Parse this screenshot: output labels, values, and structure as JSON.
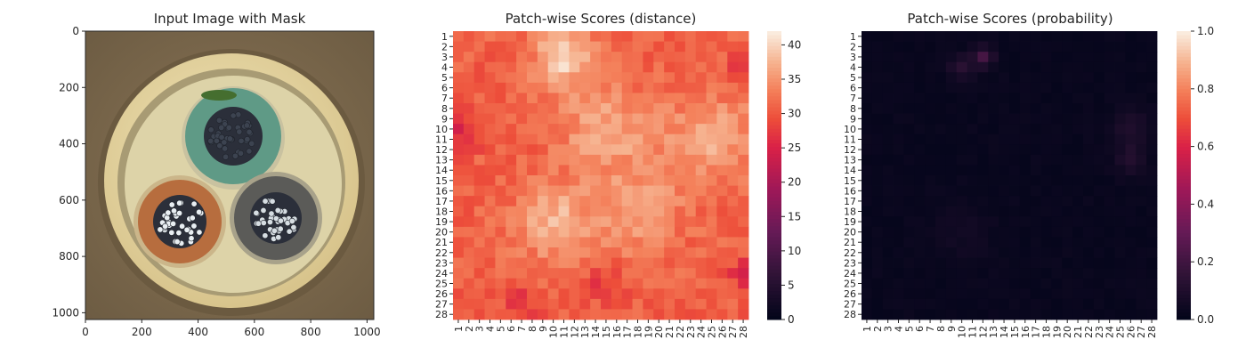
{
  "chart_data": [
    {
      "type": "image",
      "title": "Input Image with Mask",
      "xlim": [
        0,
        1024
      ],
      "ylim": [
        0,
        1024
      ],
      "x_ticks": [
        "0",
        "200",
        "400",
        "600",
        "800",
        "1000"
      ],
      "y_ticks": [
        "0",
        "200",
        "400",
        "600",
        "800",
        "1000"
      ],
      "x_tick_values": [
        0,
        200,
        400,
        600,
        800,
        1000
      ],
      "y_tick_values": [
        0,
        200,
        400,
        600,
        800,
        1000
      ],
      "image_colors": {
        "background": "#8a7556",
        "outer_ring": "#d8c48c",
        "inner_area": "#ddd3a8",
        "cable_top": "#5f9a86",
        "cable_left": "#b76d3e",
        "cable_right": "#5b5b58",
        "core": "#2b2f3a",
        "strand": "#e8eef2"
      }
    },
    {
      "type": "heatmap",
      "title": "Patch-wise Scores (distance)",
      "colormap": "rocket",
      "grid_size": 28,
      "x_ticks": [
        "1",
        "2",
        "3",
        "4",
        "5",
        "6",
        "7",
        "8",
        "9",
        "10",
        "11",
        "12",
        "13",
        "14",
        "15",
        "16",
        "17",
        "18",
        "19",
        "20",
        "21",
        "22",
        "23",
        "24",
        "25",
        "26",
        "27",
        "28"
      ],
      "y_ticks": [
        "1",
        "2",
        "3",
        "4",
        "5",
        "6",
        "7",
        "8",
        "9",
        "10",
        "11",
        "12",
        "13",
        "14",
        "15",
        "16",
        "17",
        "18",
        "19",
        "20",
        "21",
        "22",
        "23",
        "24",
        "25",
        "26",
        "27",
        "28"
      ],
      "colorbar": {
        "vmin": 0,
        "vmax": 42,
        "ticks": [
          "0",
          "5",
          "10",
          "15",
          "20",
          "25",
          "30",
          "35",
          "40"
        ],
        "tick_values": [
          0,
          5,
          10,
          15,
          20,
          25,
          30,
          35,
          40
        ]
      },
      "base_value": 31,
      "hotspots": [
        {
          "row": 3,
          "col": 11,
          "value": 40,
          "spread": 2.0
        },
        {
          "row": 10,
          "col": 15,
          "value": 37,
          "spread": 3.0
        },
        {
          "row": 11,
          "col": 25,
          "value": 37,
          "spread": 3.0
        },
        {
          "row": 19,
          "col": 10,
          "value": 38,
          "spread": 2.5
        },
        {
          "row": 18,
          "col": 18,
          "value": 36,
          "spread": 3.0
        }
      ],
      "coldspots": [
        {
          "row": 10,
          "col": 1,
          "value": 25,
          "spread": 1.5
        },
        {
          "row": 4,
          "col": 28,
          "value": 26,
          "spread": 1.0
        },
        {
          "row": 24,
          "col": 28,
          "value": 26,
          "spread": 1.0
        },
        {
          "row": 27,
          "col": 7,
          "value": 27,
          "spread": 1.2
        },
        {
          "row": 25,
          "col": 15,
          "value": 27,
          "spread": 1.2
        }
      ]
    },
    {
      "type": "heatmap",
      "title": "Patch-wise Scores (probability)",
      "colormap": "rocket",
      "grid_size": 28,
      "x_ticks": [
        "1",
        "2",
        "3",
        "4",
        "5",
        "6",
        "7",
        "8",
        "9",
        "10",
        "11",
        "12",
        "13",
        "14",
        "15",
        "16",
        "17",
        "18",
        "19",
        "20",
        "21",
        "22",
        "23",
        "24",
        "25",
        "26",
        "27",
        "28"
      ],
      "y_ticks": [
        "1",
        "2",
        "3",
        "4",
        "5",
        "6",
        "7",
        "8",
        "9",
        "10",
        "11",
        "12",
        "13",
        "14",
        "15",
        "16",
        "17",
        "18",
        "19",
        "20",
        "21",
        "22",
        "23",
        "24",
        "25",
        "26",
        "27",
        "28"
      ],
      "colorbar": {
        "vmin": 0,
        "vmax": 1,
        "ticks": [
          "0.0",
          "0.2",
          "0.4",
          "0.6",
          "0.8",
          "1.0"
        ],
        "tick_values": [
          0,
          0.2,
          0.4,
          0.6,
          0.8,
          1.0
        ]
      },
      "base_value": 0.02,
      "hotspots": [
        {
          "row": 3,
          "col": 12,
          "value": 0.2,
          "spread": 0.7
        },
        {
          "row": 4,
          "col": 10,
          "value": 0.13,
          "spread": 0.8
        },
        {
          "row": 10,
          "col": 26,
          "value": 0.1,
          "spread": 1.2
        },
        {
          "row": 13,
          "col": 26,
          "value": 0.11,
          "spread": 1.0
        },
        {
          "row": 20,
          "col": 10,
          "value": 0.05,
          "spread": 2.0
        }
      ]
    }
  ]
}
